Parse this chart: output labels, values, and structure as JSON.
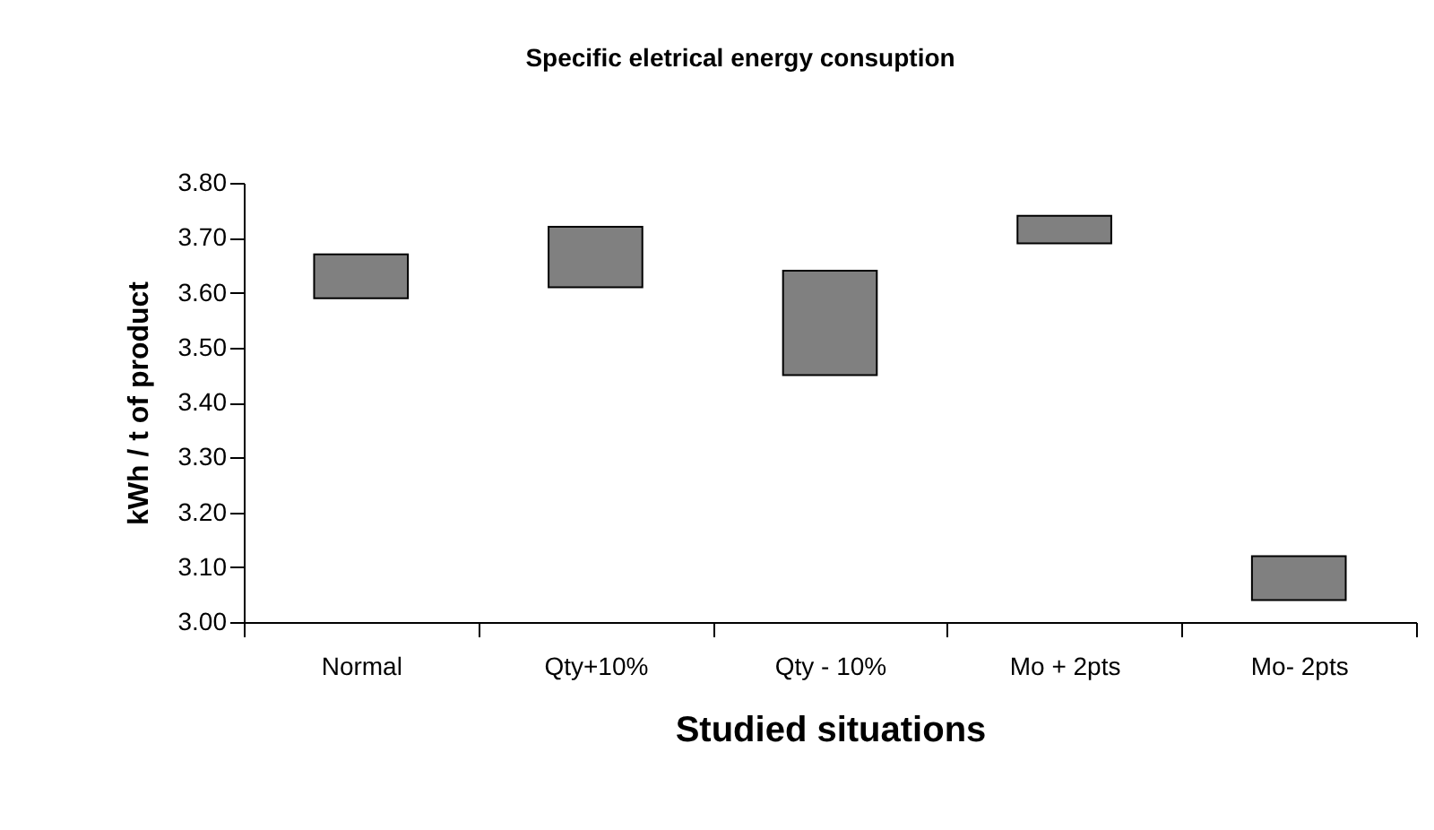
{
  "chart_data": {
    "type": "bar",
    "title": "Specific eletrical energy consuption",
    "xlabel": "Studied situations",
    "ylabel": "kWh / t of product",
    "categories": [
      "Normal",
      "Qty+10%",
      "Qty - 10%",
      "Mo + 2pts",
      "Mo- 2pts"
    ],
    "base": [
      3.59,
      3.61,
      3.45,
      3.69,
      3.04
    ],
    "values": [
      0.08,
      0.11,
      0.19,
      0.05,
      0.08
    ],
    "color": "#808080",
    "ylim": [
      3.0,
      3.8
    ],
    "yticks": [
      {
        "value": 3.0,
        "label": "3.00"
      },
      {
        "value": 3.1,
        "label": "3.10"
      },
      {
        "value": 3.2,
        "label": "3.20"
      },
      {
        "value": 3.3,
        "label": "3.30"
      },
      {
        "value": 3.4,
        "label": "3.40"
      },
      {
        "value": 3.5,
        "label": "3.50"
      },
      {
        "value": 3.6,
        "label": "3.60"
      },
      {
        "value": 3.7,
        "label": "3.70"
      },
      {
        "value": 3.8,
        "label": "3.80"
      }
    ],
    "grid": false
  }
}
